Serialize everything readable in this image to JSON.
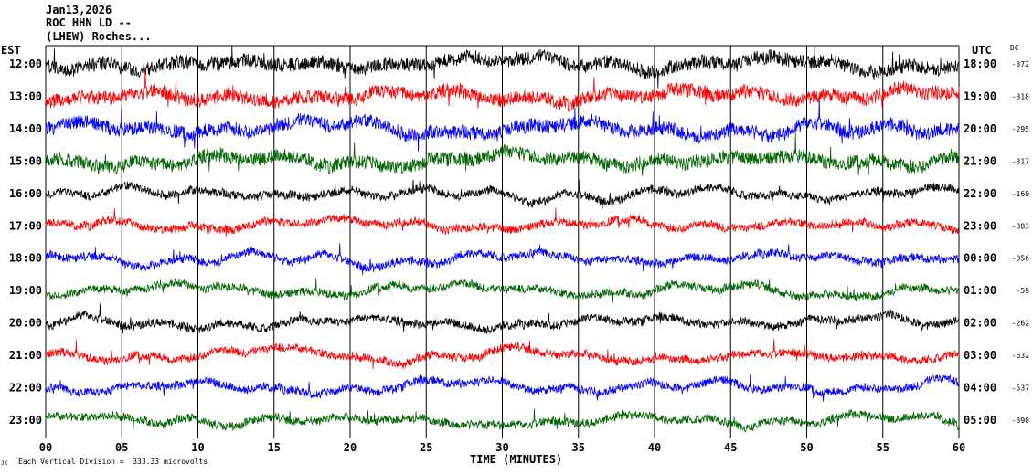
{
  "header": {
    "date": "Jan13,2026",
    "station": "ROC HHN LD --",
    "location": "(LHEW) Roches..."
  },
  "labels": {
    "left_timezone": "EST",
    "right_timezone": "UTC",
    "dc_header": "DC",
    "xlabel": "TIME (MINUTES)",
    "scale_note": "Each Vertical Division =  333.33 microvolts",
    "corner_mark": "JK"
  },
  "colors": {
    "trace_cycle": [
      "#000000",
      "#ff0000",
      "#0000ff",
      "#006400"
    ],
    "background": "#ffffff",
    "axis": "#000000"
  },
  "chart_data": {
    "type": "line",
    "title": "",
    "xlabel": "TIME (MINUTES)",
    "ylabel": "",
    "xlim": [
      0,
      60
    ],
    "x_ticks": [
      "00",
      "05",
      "10",
      "15",
      "20",
      "25",
      "30",
      "35",
      "40",
      "45",
      "50",
      "55",
      "60"
    ],
    "grid": "vertical lines every 5 minutes",
    "rows": [
      {
        "local": "12:00",
        "utc": "18:00",
        "dc": "-372",
        "color": "#000000"
      },
      {
        "local": "13:00",
        "utc": "19:00",
        "dc": "-318",
        "color": "#ff0000"
      },
      {
        "local": "14:00",
        "utc": "20:00",
        "dc": "-295",
        "color": "#0000ff"
      },
      {
        "local": "15:00",
        "utc": "21:00",
        "dc": "-317",
        "color": "#006400"
      },
      {
        "local": "16:00",
        "utc": "22:00",
        "dc": "-160",
        "color": "#000000"
      },
      {
        "local": "17:00",
        "utc": "23:00",
        "dc": "-383",
        "color": "#ff0000"
      },
      {
        "local": "18:00",
        "utc": "00:00",
        "dc": "-356",
        "color": "#0000ff"
      },
      {
        "local": "19:00",
        "utc": "01:00",
        "dc": "-59",
        "color": "#006400"
      },
      {
        "local": "20:00",
        "utc": "02:00",
        "dc": "-262",
        "color": "#000000"
      },
      {
        "local": "21:00",
        "utc": "03:00",
        "dc": "-632",
        "color": "#ff0000"
      },
      {
        "local": "22:00",
        "utc": "04:00",
        "dc": "-537",
        "color": "#0000ff"
      },
      {
        "local": "23:00",
        "utc": "05:00",
        "dc": "-390",
        "color": "#006400"
      }
    ]
  }
}
